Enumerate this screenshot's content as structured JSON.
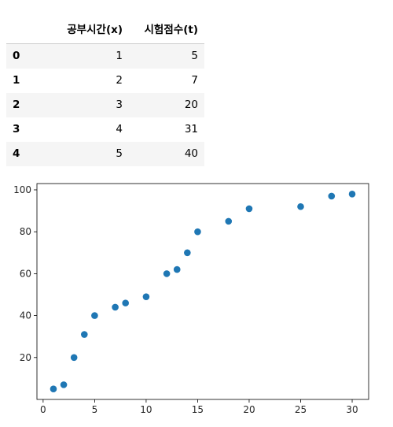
{
  "table": {
    "columns": [
      "",
      "공부시간(x)",
      "시험점수(t)"
    ],
    "rows": [
      {
        "index": "0",
        "x": "1",
        "t": "5"
      },
      {
        "index": "1",
        "x": "2",
        "t": "7"
      },
      {
        "index": "2",
        "x": "3",
        "t": "20"
      },
      {
        "index": "3",
        "x": "4",
        "t": "31"
      },
      {
        "index": "4",
        "x": "5",
        "t": "40"
      }
    ]
  },
  "chart_data": {
    "type": "scatter",
    "title": "",
    "xlabel": "",
    "ylabel": "",
    "xlim": [
      -0.6,
      31.6
    ],
    "ylim": [
      0.0,
      103
    ],
    "xticks": [
      0,
      5,
      10,
      15,
      20,
      25,
      30
    ],
    "yticks": [
      20,
      40,
      60,
      80,
      100
    ],
    "grid": false,
    "color": "#1f77b4",
    "series": [
      {
        "x": [
          1,
          2,
          3,
          4,
          5,
          7,
          8,
          10,
          12,
          13,
          14,
          15,
          18,
          20,
          25,
          28,
          30
        ],
        "y": [
          5,
          7,
          20,
          31,
          40,
          44,
          46,
          49,
          60,
          62,
          70,
          80,
          85,
          91,
          92,
          97,
          98
        ]
      }
    ]
  }
}
